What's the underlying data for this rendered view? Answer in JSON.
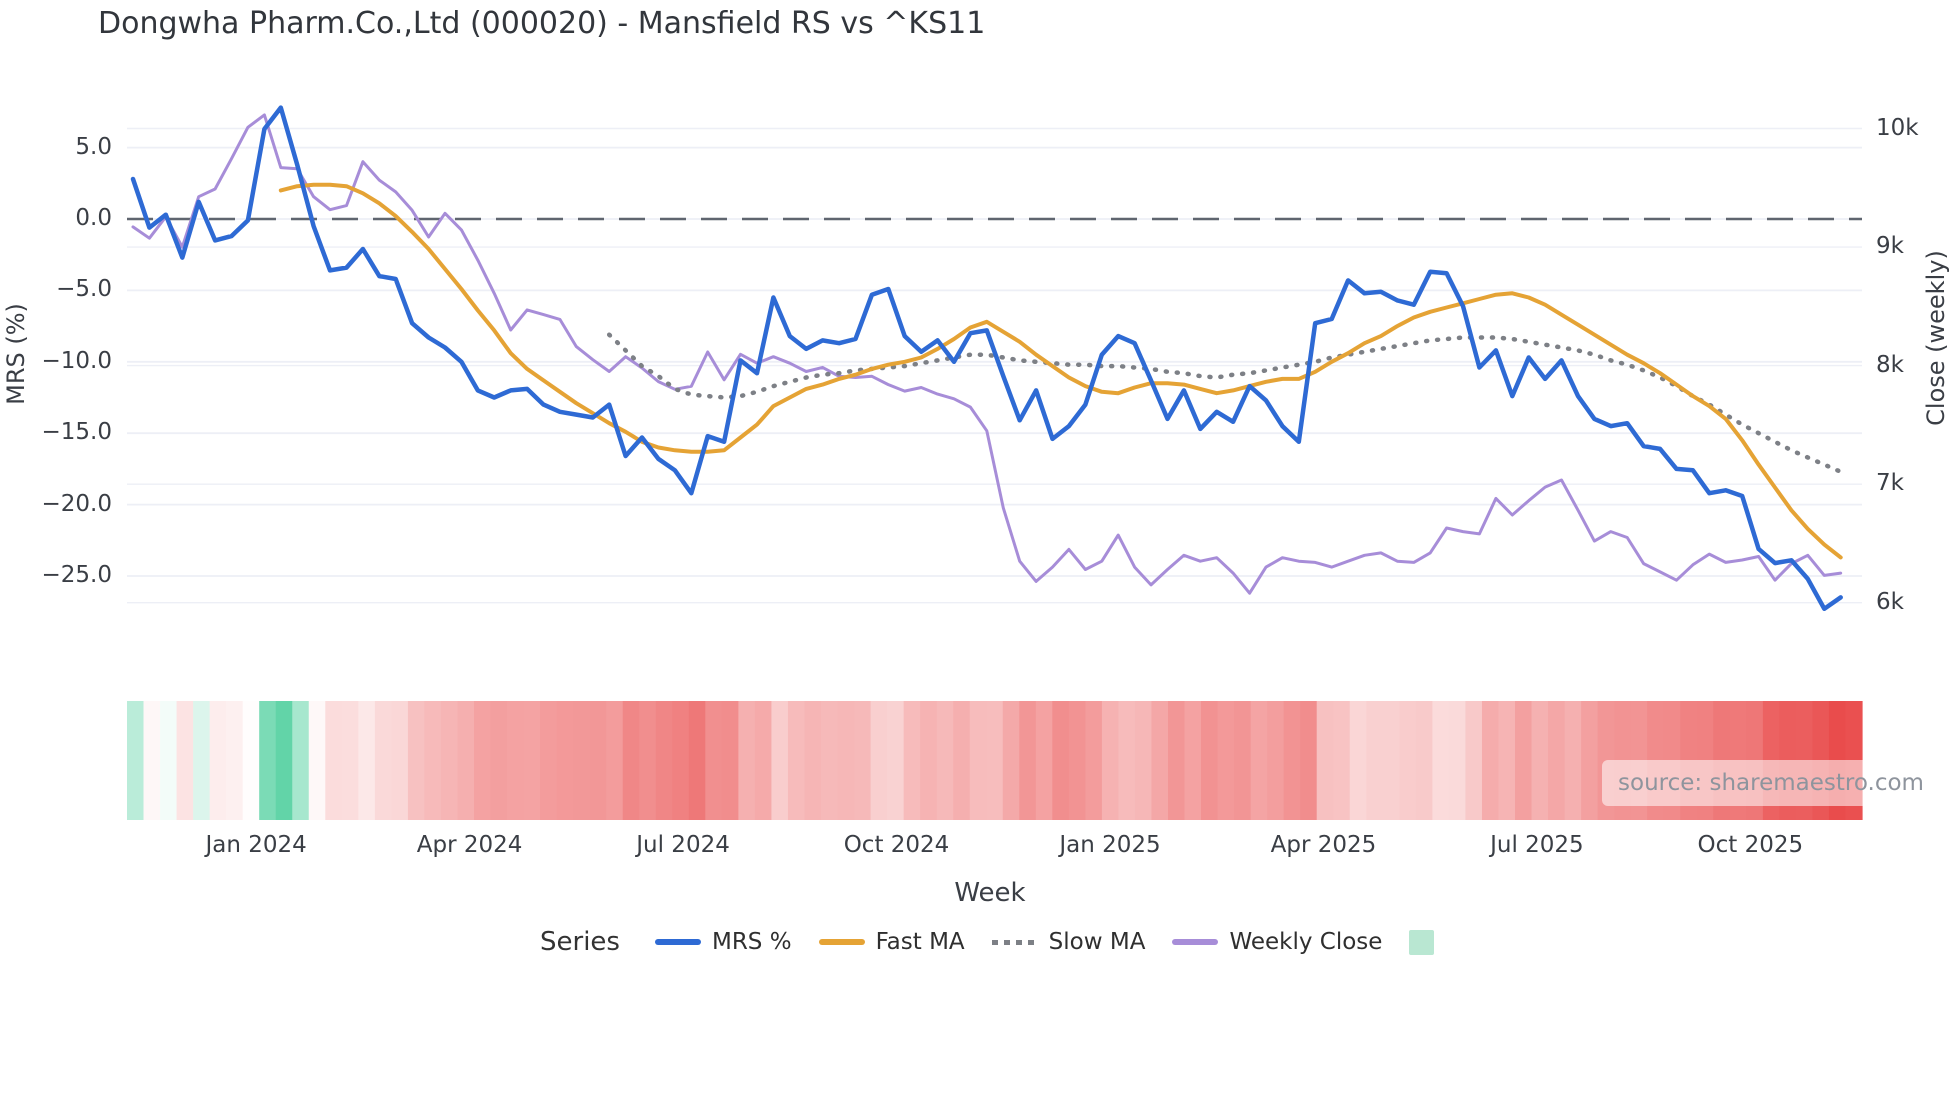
{
  "title": "Dongwha Pharm.Co.,Ltd (000020) - Mansfield RS vs ^KS11",
  "source_note": "source: sharemaestro.com",
  "axes": {
    "left": {
      "title": "MRS (%)",
      "ticks": [
        {
          "v": 5,
          "label": "5.0"
        },
        {
          "v": 0,
          "label": "0.0"
        },
        {
          "v": -5,
          "label": "−5.0"
        },
        {
          "v": -10,
          "label": "−10.0"
        },
        {
          "v": -15,
          "label": "−15.0"
        },
        {
          "v": -20,
          "label": "−20.0"
        },
        {
          "v": -25,
          "label": "−25.0"
        }
      ]
    },
    "right": {
      "title": "Close (weekly)",
      "ticks": [
        {
          "v": 10000,
          "label": "10k"
        },
        {
          "v": 9000,
          "label": "9k"
        },
        {
          "v": 8000,
          "label": "8k"
        },
        {
          "v": 7000,
          "label": "7k"
        },
        {
          "v": 6000,
          "label": "6k"
        }
      ]
    },
    "x": {
      "title": "Week",
      "ticks": [
        {
          "week": 7.5,
          "label": "Jan 2024"
        },
        {
          "week": 20.5,
          "label": "Apr 2024"
        },
        {
          "week": 33.5,
          "label": "Jul 2024"
        },
        {
          "week": 46.5,
          "label": "Oct 2024"
        },
        {
          "week": 59.5,
          "label": "Jan 2025"
        },
        {
          "week": 72.5,
          "label": "Apr 2025"
        },
        {
          "week": 85.5,
          "label": "Jul 2025"
        },
        {
          "week": 98.5,
          "label": "Oct 2025"
        }
      ]
    }
  },
  "legend": {
    "title": "Series",
    "items": [
      {
        "label": "MRS %",
        "color": "#2e6ad4",
        "swatch": "line"
      },
      {
        "label": "Fast MA",
        "color": "#e5a335",
        "swatch": "line"
      },
      {
        "label": "Slow MA",
        "color": "#7d8086",
        "swatch": "dotted"
      },
      {
        "label": "Weekly Close",
        "color": "#a78dd8",
        "swatch": "line"
      },
      {
        "label": "",
        "color": "#b9e7d2",
        "swatch": "square"
      }
    ]
  },
  "chart_data": {
    "type": "line",
    "title": "Dongwha Pharm.Co.,Ltd (000020) - Mansfield RS vs ^KS11",
    "xlabel": "Week",
    "ylabel_left": "MRS (%)",
    "ylabel_right": "Close (weekly)",
    "x_unit": "week_index",
    "n_weeks": 105,
    "ylim_left": [
      -28.5,
      9.5
    ],
    "ylim_right": [
      5600,
      10400
    ],
    "grid": true,
    "legend_position": "bottom",
    "zero_line": {
      "value": 0,
      "axis": "left",
      "style": "dashed",
      "color": "#5f656f"
    },
    "series": [
      {
        "name": "MRS %",
        "axis": "left",
        "color": "#2e6ad4",
        "width": 4.5,
        "dash": "solid",
        "start_week": 0,
        "values": [
          2.8,
          -0.6,
          0.3,
          -2.7,
          1.2,
          -1.5,
          -1.2,
          -0.1,
          6.3,
          7.8,
          3.8,
          -0.5,
          -3.6,
          -3.4,
          -2.1,
          -4.0,
          -4.2,
          -7.3,
          -8.3,
          -9.0,
          -10.0,
          -12.0,
          -12.5,
          -12.0,
          -11.9,
          -13.0,
          -13.5,
          -13.7,
          -13.9,
          -13.0,
          -16.6,
          -15.3,
          -16.8,
          -17.6,
          -19.2,
          -15.2,
          -15.6,
          -9.9,
          -10.8,
          -5.5,
          -8.2,
          -9.1,
          -8.5,
          -8.7,
          -8.4,
          -5.3,
          -4.9,
          -8.2,
          -9.3,
          -8.5,
          -10.0,
          -8.0,
          -7.8,
          -11.0,
          -14.1,
          -12.0,
          -15.4,
          -14.5,
          -13.0,
          -9.5,
          -8.2,
          -8.7,
          -11.3,
          -14.0,
          -12.0,
          -14.7,
          -13.5,
          -14.2,
          -11.7,
          -12.7,
          -14.5,
          -15.6,
          -7.3,
          -7.0,
          -4.3,
          -5.2,
          -5.1,
          -5.7,
          -6.0,
          -3.7,
          -3.8,
          -6.1,
          -10.4,
          -9.2,
          -12.4,
          -9.7,
          -11.2,
          -9.9,
          -12.4,
          -14.0,
          -14.5,
          -14.3,
          -15.9,
          -16.1,
          -17.5,
          -17.6,
          -19.2,
          -19.0,
          -19.4,
          -23.1,
          -24.1,
          -23.9,
          -25.2,
          -27.3,
          -26.5
        ]
      },
      {
        "name": "Fast MA",
        "axis": "left",
        "color": "#e5a335",
        "width": 4,
        "dash": "solid",
        "start_week": 9,
        "values": [
          2.0,
          2.3,
          2.4,
          2.4,
          2.3,
          1.8,
          1.1,
          0.2,
          -0.9,
          -2.1,
          -3.5,
          -4.9,
          -6.4,
          -7.8,
          -9.4,
          -10.5,
          -11.3,
          -12.1,
          -12.9,
          -13.6,
          -14.3,
          -14.9,
          -15.6,
          -16.0,
          -16.2,
          -16.3,
          -16.3,
          -16.2,
          -15.3,
          -14.4,
          -13.1,
          -12.5,
          -11.9,
          -11.6,
          -11.2,
          -10.9,
          -10.5,
          -10.2,
          -10.0,
          -9.7,
          -9.1,
          -8.4,
          -7.6,
          -7.2,
          -7.9,
          -8.6,
          -9.5,
          -10.3,
          -11.1,
          -11.7,
          -12.1,
          -12.2,
          -11.8,
          -11.5,
          -11.5,
          -11.6,
          -11.9,
          -12.2,
          -12.0,
          -11.7,
          -11.4,
          -11.2,
          -11.2,
          -10.7,
          -10.0,
          -9.4,
          -8.7,
          -8.2,
          -7.5,
          -6.9,
          -6.5,
          -6.2,
          -5.9,
          -5.6,
          -5.3,
          -5.2,
          -5.5,
          -6.0,
          -6.7,
          -7.4,
          -8.1,
          -8.8,
          -9.5,
          -10.1,
          -10.8,
          -11.6,
          -12.4,
          -13.1,
          -14.0,
          -15.5,
          -17.2,
          -18.8,
          -20.4,
          -21.7,
          -22.8,
          -23.7
        ]
      },
      {
        "name": "Slow MA",
        "axis": "left",
        "color": "#7d8086",
        "width": 3.5,
        "dash": "dotted",
        "start_week": 29,
        "values": [
          -8.1,
          -9.2,
          -10.3,
          -11.0,
          -11.9,
          -12.3,
          -12.4,
          -12.5,
          -12.4,
          -12.1,
          -11.7,
          -11.4,
          -11.1,
          -10.9,
          -10.8,
          -10.6,
          -10.5,
          -10.4,
          -10.3,
          -10.1,
          -9.9,
          -9.7,
          -9.5,
          -9.5,
          -9.7,
          -9.9,
          -10.0,
          -10.1,
          -10.2,
          -10.2,
          -10.3,
          -10.3,
          -10.4,
          -10.5,
          -10.7,
          -10.8,
          -11.0,
          -11.1,
          -10.9,
          -10.8,
          -10.6,
          -10.4,
          -10.2,
          -10.0,
          -9.7,
          -9.5,
          -9.3,
          -9.1,
          -8.9,
          -8.7,
          -8.5,
          -8.4,
          -8.3,
          -8.3,
          -8.3,
          -8.4,
          -8.6,
          -8.8,
          -9.0,
          -9.2,
          -9.5,
          -9.9,
          -10.2,
          -10.6,
          -11.1,
          -11.7,
          -12.4,
          -13.0,
          -13.7,
          -14.4,
          -15.0,
          -15.6,
          -16.2,
          -16.7,
          -17.2,
          -17.7
        ]
      },
      {
        "name": "Weekly Close",
        "axis": "right",
        "color": "#a78dd8",
        "width": 3,
        "dash": "solid",
        "start_week": 0,
        "values": [
          9170,
          9075,
          9255,
          9000,
          9425,
          9490,
          9745,
          10010,
          10115,
          9670,
          9660,
          9425,
          9315,
          9350,
          9720,
          9565,
          9465,
          9310,
          9085,
          9285,
          9145,
          8890,
          8610,
          8300,
          8470,
          8430,
          8390,
          8160,
          8050,
          7950,
          8075,
          7980,
          7865,
          7800,
          7825,
          8115,
          7880,
          8095,
          8020,
          8075,
          8020,
          7950,
          7985,
          7910,
          7900,
          7910,
          7840,
          7785,
          7815,
          7760,
          7720,
          7650,
          7450,
          6800,
          6350,
          6180,
          6300,
          6450,
          6280,
          6350,
          6570,
          6300,
          6150,
          6280,
          6400,
          6350,
          6380,
          6250,
          6080,
          6300,
          6380,
          6350,
          6340,
          6300,
          6350,
          6400,
          6420,
          6350,
          6340,
          6420,
          6630,
          6600,
          6580,
          6880,
          6740,
          6860,
          6975,
          7035,
          6780,
          6520,
          6600,
          6550,
          6330,
          6260,
          6190,
          6320,
          6410,
          6340,
          6360,
          6390,
          6190,
          6330,
          6400,
          6230,
          6250
        ]
      }
    ],
    "heatmap_strip": {
      "derived_from": "MRS %",
      "positive_color": "#4fcf9e",
      "negative_color": "#e94b4b",
      "neutral_color": "#ffffff"
    },
    "colors": {
      "grid": "#edeff6",
      "zero_line": "#5f656f",
      "text": "#3a3e45"
    }
  }
}
